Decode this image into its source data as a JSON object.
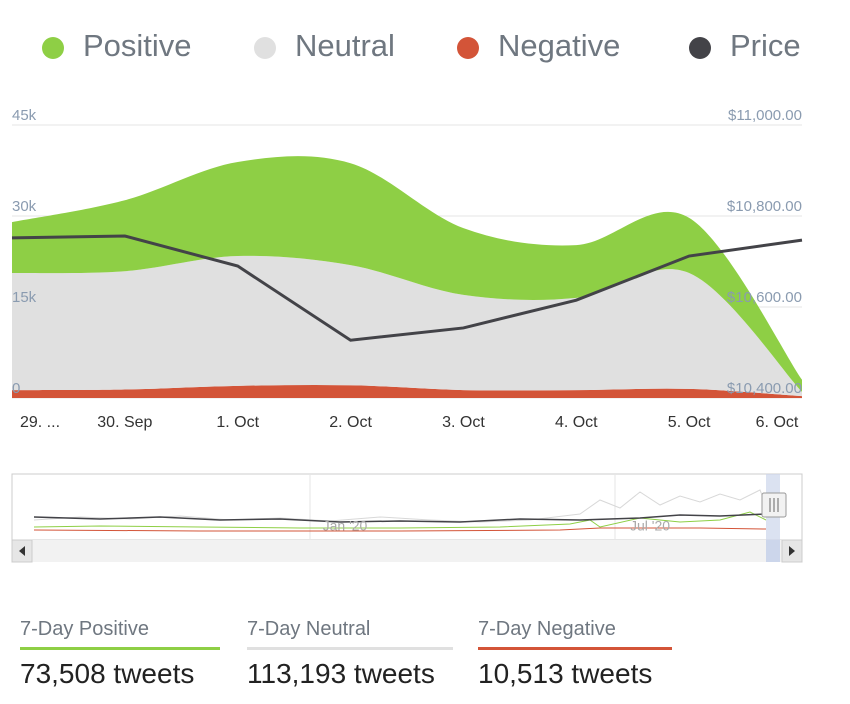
{
  "chart_data": {
    "type": "area",
    "stacked": true,
    "categories": [
      "29. ...",
      "30. Sep",
      "1. Oct",
      "2. Oct",
      "3. Oct",
      "4. Oct",
      "5. Oct",
      "6. Oct"
    ],
    "series": [
      {
        "name": "Positive",
        "color": "#8ecf45",
        "values": [
          8400,
          11700,
          15500,
          16800,
          11000,
          8700,
          9100,
          2000
        ]
      },
      {
        "name": "Neutral",
        "color": "#e0e0e0",
        "values": [
          19300,
          19500,
          21400,
          19800,
          15700,
          15200,
          19100,
          700
        ]
      },
      {
        "name": "Negative",
        "color": "#d35438",
        "values": [
          1300,
          1400,
          2000,
          2100,
          1300,
          1300,
          1500,
          300
        ]
      },
      {
        "name": "Price",
        "color": "#434348",
        "type": "line",
        "axis": "y2",
        "values": [
          10752,
          10756,
          10690,
          10527,
          10554,
          10615,
          10712,
          10747
        ]
      }
    ],
    "ylim": [
      0,
      45000
    ],
    "yticks": [
      {
        "value": 0,
        "label": "0"
      },
      {
        "value": 15000,
        "label": "15k"
      },
      {
        "value": 30000,
        "label": "30k"
      },
      {
        "value": 45000,
        "label": "45k"
      }
    ],
    "y2lim": [
      10400,
      11000
    ],
    "y2ticks": [
      {
        "value": 10400,
        "label": "$10,400.00"
      },
      {
        "value": 10600,
        "label": "$10,600.00"
      },
      {
        "value": 10800,
        "label": "$10,800.00"
      },
      {
        "value": 11000,
        "label": "$11,000.00"
      }
    ],
    "grid": true,
    "legend": "top",
    "navigator_labels": [
      "Jan '20",
      "Jul '20"
    ]
  },
  "summary": [
    {
      "label": "7-Day Positive",
      "value": "73,508 tweets"
    },
    {
      "label": "7-Day Neutral",
      "value": "113,193 tweets"
    },
    {
      "label": "7-Day Negative",
      "value": "10,513 tweets"
    }
  ]
}
